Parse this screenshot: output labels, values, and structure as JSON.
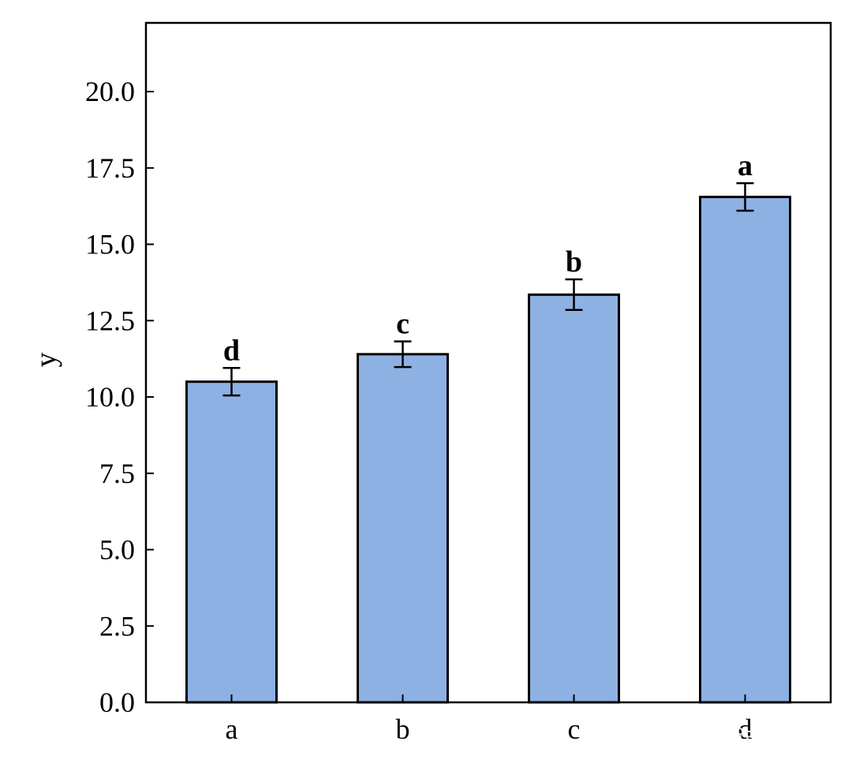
{
  "chart_data": {
    "type": "bar",
    "categories": [
      "a",
      "b",
      "c",
      "d"
    ],
    "values": [
      10.5,
      11.4,
      13.35,
      16.55
    ],
    "errors": [
      0.45,
      0.42,
      0.5,
      0.45
    ],
    "significance_letters": [
      "d",
      "c",
      "b",
      "a"
    ],
    "xlabel": "",
    "ylabel": "y",
    "ylim": [
      0,
      22.25
    ],
    "yticks": [
      "0.0",
      "2.5",
      "5.0",
      "7.5",
      "10.0",
      "12.5",
      "15.0",
      "17.5",
      "20.0"
    ],
    "bar_color": "#8eb1e4",
    "bar_edge_color": "#000000",
    "grid": false
  },
  "watermark": {
    "text": "知乎 @lne的试验记录"
  }
}
